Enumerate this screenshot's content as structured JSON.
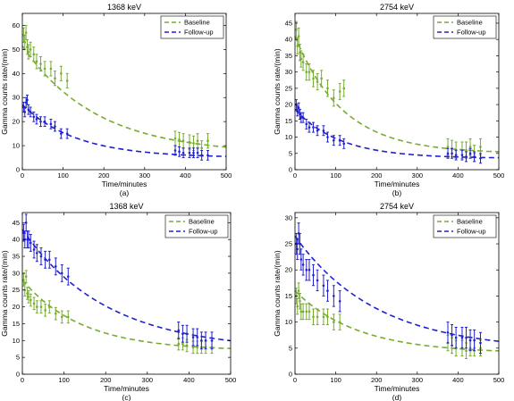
{
  "chart_data": [
    {
      "type": "scatter",
      "panel_label": "(a)",
      "title": "1368 keV",
      "xlabel": "Time/minutes",
      "ylabel": "Gamma counts rate/(min)",
      "xlim": [
        0,
        500
      ],
      "ylim": [
        0,
        65
      ],
      "xticks": [
        0,
        100,
        200,
        300,
        400,
        500
      ],
      "yticks": [
        0,
        10,
        20,
        30,
        40,
        50,
        60
      ],
      "grid": false,
      "legend_position": "top-right",
      "series": [
        {
          "name": "Baseline",
          "color": "#77ac30",
          "points": [
            [
              3,
              56
            ],
            [
              6,
              53
            ],
            [
              9,
              57
            ],
            [
              12,
              51
            ],
            [
              15,
              49
            ],
            [
              20,
              50
            ],
            [
              28,
              48
            ],
            [
              35,
              45
            ],
            [
              45,
              44
            ],
            [
              55,
              42
            ],
            [
              70,
              42
            ],
            [
              80,
              38
            ],
            [
              95,
              40
            ],
            [
              110,
              37
            ],
            [
              375,
              13
            ],
            [
              385,
              12.5
            ],
            [
              395,
              12
            ],
            [
              410,
              11.5
            ],
            [
              420,
              11
            ],
            [
              430,
              12
            ],
            [
              440,
              9
            ],
            [
              455,
              12
            ]
          ],
          "err": 3,
          "fit": {
            "a": 45,
            "b": 0.0055,
            "c": 6.5
          }
        },
        {
          "name": "Follow-up",
          "color": "#2020d0",
          "points": [
            [
              3,
              26
            ],
            [
              6,
              24
            ],
            [
              9,
              28
            ],
            [
              12,
              29
            ],
            [
              15,
              25
            ],
            [
              20,
              24
            ],
            [
              28,
              22
            ],
            [
              35,
              21
            ],
            [
              45,
              20
            ],
            [
              55,
              20
            ],
            [
              70,
              19
            ],
            [
              80,
              18
            ],
            [
              95,
              15
            ],
            [
              110,
              15
            ],
            [
              375,
              8
            ],
            [
              385,
              7.5
            ],
            [
              395,
              7
            ],
            [
              410,
              7
            ],
            [
              420,
              7
            ],
            [
              430,
              7
            ],
            [
              440,
              6
            ],
            [
              455,
              6
            ]
          ],
          "err": 2,
          "fit": {
            "a": 22,
            "b": 0.0075,
            "c": 5
          }
        }
      ]
    },
    {
      "type": "scatter",
      "panel_label": "(b)",
      "title": "2754 keV",
      "xlabel": "Time/minutes",
      "ylabel": "Gamma counts rate/(min)",
      "xlim": [
        0,
        500
      ],
      "ylim": [
        0,
        48
      ],
      "xticks": [
        0,
        100,
        200,
        300,
        400,
        500
      ],
      "yticks": [
        0,
        5,
        10,
        15,
        20,
        25,
        30,
        35,
        40,
        45
      ],
      "grid": false,
      "legend_position": "top-right",
      "series": [
        {
          "name": "Baseline",
          "color": "#77ac30",
          "points": [
            [
              3,
              43
            ],
            [
              6,
              38
            ],
            [
              9,
              41
            ],
            [
              12,
              36
            ],
            [
              15,
              34
            ],
            [
              20,
              33
            ],
            [
              28,
              30
            ],
            [
              35,
              30
            ],
            [
              45,
              28
            ],
            [
              55,
              27
            ],
            [
              65,
              28
            ],
            [
              80,
              25
            ],
            [
              95,
              22
            ],
            [
              110,
              24
            ],
            [
              120,
              25
            ],
            [
              375,
              7
            ],
            [
              385,
              6.5
            ],
            [
              395,
              6
            ],
            [
              410,
              6
            ],
            [
              420,
              6
            ],
            [
              430,
              7
            ],
            [
              440,
              5
            ],
            [
              455,
              7
            ]
          ],
          "err": 2.5,
          "fit": {
            "a": 36,
            "b": 0.0085,
            "c": 5
          }
        },
        {
          "name": "Follow-up",
          "color": "#2020d0",
          "points": [
            [
              3,
              20
            ],
            [
              6,
              18
            ],
            [
              9,
              19
            ],
            [
              12,
              17
            ],
            [
              15,
              16
            ],
            [
              20,
              16
            ],
            [
              28,
              14
            ],
            [
              35,
              13
            ],
            [
              45,
              13
            ],
            [
              55,
              12
            ],
            [
              70,
              12
            ],
            [
              80,
              10
            ],
            [
              95,
              9
            ],
            [
              110,
              9
            ],
            [
              120,
              8
            ],
            [
              375,
              5
            ],
            [
              385,
              5
            ],
            [
              395,
              4.5
            ],
            [
              410,
              4.5
            ],
            [
              420,
              4
            ],
            [
              430,
              5
            ],
            [
              440,
              4
            ],
            [
              455,
              3.5
            ]
          ],
          "err": 1.5,
          "fit": {
            "a": 15,
            "b": 0.009,
            "c": 3.5
          }
        }
      ]
    },
    {
      "type": "scatter",
      "panel_label": "(c)",
      "title": "1368 keV",
      "xlabel": "Time/minutes",
      "ylabel": "Gamma counts rate/(min)",
      "xlim": [
        0,
        500
      ],
      "ylim": [
        0,
        48
      ],
      "xticks": [
        0,
        100,
        200,
        300,
        400,
        500
      ],
      "yticks": [
        0,
        5,
        10,
        15,
        20,
        25,
        30,
        35,
        40,
        45
      ],
      "grid": false,
      "legend_position": "top-right",
      "series": [
        {
          "name": "Baseline",
          "color": "#77ac30",
          "points": [
            [
              3,
              28
            ],
            [
              6,
              25
            ],
            [
              9,
              29
            ],
            [
              12,
              24
            ],
            [
              15,
              23
            ],
            [
              20,
              22
            ],
            [
              28,
              21
            ],
            [
              35,
              20
            ],
            [
              45,
              20
            ],
            [
              55,
              19
            ],
            [
              65,
              20
            ],
            [
              80,
              18
            ],
            [
              95,
              17
            ],
            [
              110,
              17
            ],
            [
              375,
              9
            ],
            [
              385,
              9
            ],
            [
              395,
              8.5
            ],
            [
              410,
              8
            ],
            [
              420,
              8
            ],
            [
              430,
              8
            ],
            [
              440,
              8
            ],
            [
              455,
              8
            ]
          ],
          "err": 1.8,
          "fit": {
            "a": 21,
            "b": 0.007,
            "c": 7
          }
        },
        {
          "name": "Follow-up",
          "color": "#2020d0",
          "points": [
            [
              3,
              42
            ],
            [
              6,
              40
            ],
            [
              9,
              45
            ],
            [
              12,
              40
            ],
            [
              15,
              40
            ],
            [
              20,
              39
            ],
            [
              28,
              37
            ],
            [
              35,
              36
            ],
            [
              45,
              35
            ],
            [
              55,
              34
            ],
            [
              65,
              34
            ],
            [
              80,
              32
            ],
            [
              95,
              30
            ],
            [
              110,
              29
            ],
            [
              375,
              13
            ],
            [
              385,
              12
            ],
            [
              395,
              12
            ],
            [
              410,
              11
            ],
            [
              420,
              11
            ],
            [
              430,
              10
            ],
            [
              440,
              10
            ],
            [
              455,
              10
            ]
          ],
          "err": 2.5,
          "fit": {
            "a": 36,
            "b": 0.005,
            "c": 7
          }
        }
      ]
    },
    {
      "type": "scatter",
      "panel_label": "(d)",
      "title": "2754 keV",
      "xlabel": "Time/minutes",
      "ylabel": "Gamma counts rate/(min)",
      "xlim": [
        0,
        500
      ],
      "ylim": [
        0,
        31
      ],
      "xticks": [
        0,
        100,
        200,
        300,
        400,
        500
      ],
      "yticks": [
        0,
        5,
        10,
        15,
        20,
        25,
        30
      ],
      "grid": false,
      "legend_position": "top-right",
      "series": [
        {
          "name": "Baseline",
          "color": "#77ac30",
          "points": [
            [
              3,
              15
            ],
            [
              6,
              13
            ],
            [
              9,
              16
            ],
            [
              12,
              14
            ],
            [
              15,
              12
            ],
            [
              20,
              12
            ],
            [
              28,
              12
            ],
            [
              35,
              12
            ],
            [
              45,
              11
            ],
            [
              55,
              11
            ],
            [
              70,
              11
            ],
            [
              80,
              11
            ],
            [
              95,
              10
            ],
            [
              110,
              10
            ],
            [
              375,
              6
            ],
            [
              385,
              5.5
            ],
            [
              395,
              5
            ],
            [
              410,
              5
            ],
            [
              420,
              4.5
            ],
            [
              430,
              5
            ],
            [
              440,
              5
            ],
            [
              455,
              5
            ]
          ],
          "err": 1.5,
          "fit": {
            "a": 12,
            "b": 0.0065,
            "c": 4
          }
        },
        {
          "name": "Follow-up",
          "color": "#2020d0",
          "points": [
            [
              3,
              25
            ],
            [
              6,
              24
            ],
            [
              9,
              27
            ],
            [
              12,
              25
            ],
            [
              15,
              22
            ],
            [
              20,
              21
            ],
            [
              28,
              20
            ],
            [
              35,
              20
            ],
            [
              45,
              19
            ],
            [
              55,
              18
            ],
            [
              70,
              17
            ],
            [
              80,
              16
            ],
            [
              95,
              15
            ],
            [
              110,
              14
            ],
            [
              375,
              8
            ],
            [
              385,
              7.5
            ],
            [
              395,
              7
            ],
            [
              410,
              7
            ],
            [
              420,
              7
            ],
            [
              430,
              6.5
            ],
            [
              440,
              6.5
            ],
            [
              455,
              6
            ]
          ],
          "err": 2,
          "fit": {
            "a": 22,
            "b": 0.005,
            "c": 4.5
          }
        }
      ]
    }
  ]
}
